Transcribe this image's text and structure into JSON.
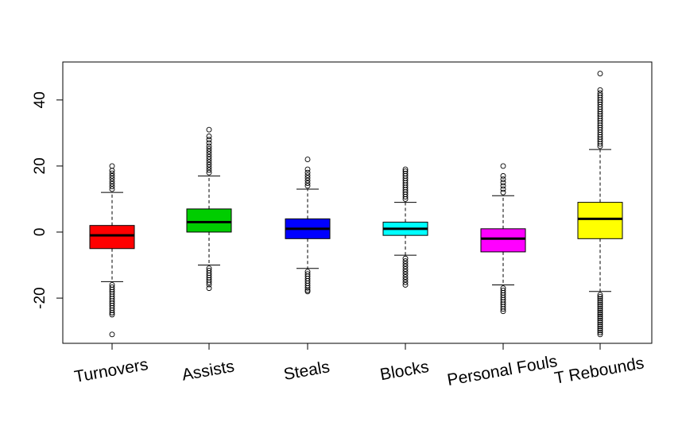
{
  "chart_data": {
    "type": "boxplot",
    "categories": [
      "Turnovers",
      "Assists",
      "Steals",
      "Blocks",
      "Personal Fouls",
      "T Rebounds"
    ],
    "colors": [
      "#ff0000",
      "#00cd00",
      "#0000ff",
      "#00ffff",
      "#ff00ff",
      "#ffff00"
    ],
    "boxes": [
      {
        "name": "Turnovers",
        "whisker_low": -15,
        "q1": -5,
        "median": -1,
        "q3": 2,
        "whisker_high": 12,
        "outliers_low": [
          -16,
          -16.7,
          -17.4,
          -18.1,
          -18.8,
          -19.5,
          -20.2,
          -20.9,
          -21.6,
          -22.3,
          -23,
          -23.7,
          -24.4,
          -25,
          -31
        ],
        "outliers_high": [
          13,
          13.8,
          14.6,
          15.4,
          16.2,
          17,
          17.8,
          18.6,
          20
        ]
      },
      {
        "name": "Assists",
        "whisker_low": -10,
        "q1": 0,
        "median": 3,
        "q3": 7,
        "whisker_high": 17,
        "outliers_low": [
          -11,
          -11.7,
          -12.4,
          -13.1,
          -13.8,
          -14.5,
          -15.2,
          -15.9,
          -17
        ],
        "outliers_high": [
          18,
          18.8,
          19.6,
          20.4,
          21.2,
          22,
          22.8,
          23.6,
          24.4,
          25.2,
          26,
          27,
          28,
          29,
          31
        ]
      },
      {
        "name": "Steals",
        "whisker_low": -11,
        "q1": -2,
        "median": 1,
        "q3": 4,
        "whisker_high": 13,
        "outliers_low": [
          -12,
          -12.7,
          -13.4,
          -14.1,
          -14.8,
          -15.5,
          -16.2,
          -16.9,
          -17.6,
          -18
        ],
        "outliers_high": [
          14,
          14.8,
          15.6,
          16.4,
          17.2,
          18,
          19,
          22
        ]
      },
      {
        "name": "Blocks",
        "whisker_low": -7,
        "q1": -1,
        "median": 1,
        "q3": 3,
        "whisker_high": 9,
        "outliers_low": [
          -8,
          -8.8,
          -9.6,
          -10.4,
          -11.2,
          -12,
          -12.8,
          -13.6,
          -14.4,
          -15.2,
          -16
        ],
        "outliers_high": [
          10,
          10.7,
          11.4,
          12.1,
          12.8,
          13.5,
          14.2,
          14.9,
          15.6,
          16.3,
          17,
          17.7,
          18.4,
          19
        ]
      },
      {
        "name": "Personal Fouls",
        "whisker_low": -16,
        "q1": -6,
        "median": -2,
        "q3": 1,
        "whisker_high": 11,
        "outliers_low": [
          -17,
          -17.7,
          -18.4,
          -19.1,
          -19.8,
          -20.5,
          -21.2,
          -21.9,
          -22.6,
          -23.3,
          -24
        ],
        "outliers_high": [
          12,
          13,
          14,
          15,
          16,
          17,
          20
        ]
      },
      {
        "name": "T Rebounds",
        "whisker_low": -18,
        "q1": -2,
        "median": 4,
        "q3": 9,
        "whisker_high": 25,
        "outliers_low": [
          -19,
          -19.6,
          -20.2,
          -20.8,
          -21.4,
          -22,
          -22.6,
          -23.2,
          -23.8,
          -24.4,
          -25,
          -25.6,
          -26.2,
          -26.8,
          -27.4,
          -28,
          -28.6,
          -29.2,
          -29.8,
          -30.4,
          -31
        ],
        "outliers_high": [
          26,
          26.7,
          27.4,
          28.1,
          28.8,
          29.5,
          30.2,
          30.9,
          31.6,
          32.3,
          33,
          33.7,
          34.4,
          35.1,
          35.8,
          36.5,
          37.2,
          37.9,
          38.6,
          39.3,
          40,
          40.7,
          41.4,
          42.1,
          43,
          48
        ]
      }
    ],
    "y_ticks": [
      -20,
      0,
      20,
      40
    ],
    "ylim": [
      -34,
      51
    ],
    "title": "",
    "xlabel": "",
    "ylabel": "",
    "grid": false,
    "legend": "none"
  }
}
